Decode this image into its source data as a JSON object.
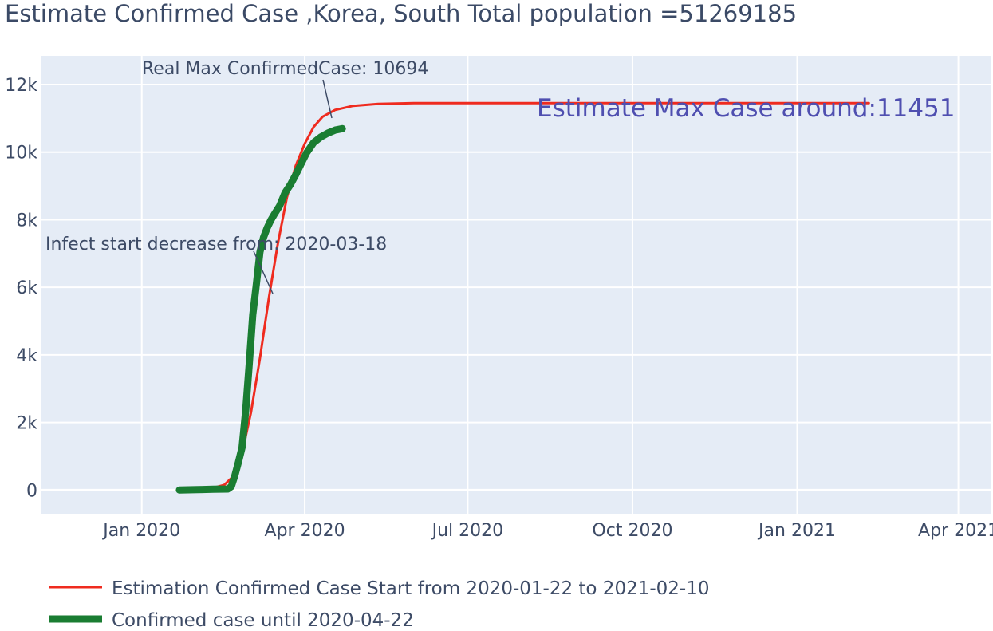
{
  "chart_data": {
    "type": "line",
    "title": "Estimate Confirmed Case ,Korea, South Total population =51269185",
    "xlabel": "",
    "ylabel": "",
    "x_type": "date",
    "xlim": [
      "2019-11-06",
      "2021-04-19"
    ],
    "ylim": [
      -700,
      12850
    ],
    "x_ticks": [
      {
        "date": "2020-01-01",
        "label": "Jan 2020"
      },
      {
        "date": "2020-04-01",
        "label": "Apr 2020"
      },
      {
        "date": "2020-07-01",
        "label": "Jul 2020"
      },
      {
        "date": "2020-10-01",
        "label": "Oct 2020"
      },
      {
        "date": "2021-01-01",
        "label": "Jan 2021"
      },
      {
        "date": "2021-04-01",
        "label": "Apr 2021"
      }
    ],
    "y_ticks": [
      {
        "value": 0,
        "label": "0"
      },
      {
        "value": 2000,
        "label": "2k"
      },
      {
        "value": 4000,
        "label": "4k"
      },
      {
        "value": 6000,
        "label": "6k"
      },
      {
        "value": 8000,
        "label": "8k"
      },
      {
        "value": 10000,
        "label": "10k"
      },
      {
        "value": 12000,
        "label": "12k"
      }
    ],
    "grid": true,
    "legend_position": "bottom-left",
    "series": [
      {
        "name": "Estimation Confirmed Case Start from 2020-01-22 to 2021-02-10",
        "color": "#ef2b1f",
        "line_width": 3,
        "points": [
          [
            "2020-01-22",
            5
          ],
          [
            "2020-02-01",
            20
          ],
          [
            "2020-02-10",
            70
          ],
          [
            "2020-02-16",
            150
          ],
          [
            "2020-02-21",
            400
          ],
          [
            "2020-02-26",
            1100
          ],
          [
            "2020-03-02",
            2300
          ],
          [
            "2020-03-07",
            3900
          ],
          [
            "2020-03-12",
            5700
          ],
          [
            "2020-03-17",
            7300
          ],
          [
            "2020-03-22",
            8650
          ],
          [
            "2020-03-27",
            9600
          ],
          [
            "2020-04-01",
            10250
          ],
          [
            "2020-04-06",
            10750
          ],
          [
            "2020-04-11",
            11050
          ],
          [
            "2020-04-18",
            11250
          ],
          [
            "2020-04-28",
            11370
          ],
          [
            "2020-05-12",
            11430
          ],
          [
            "2020-06-01",
            11450
          ],
          [
            "2020-09-01",
            11451
          ],
          [
            "2021-02-10",
            11451
          ]
        ]
      },
      {
        "name": "Confirmed case until 2020-04-22",
        "color": "#1a7d32",
        "line_width": 9,
        "points": [
          [
            "2020-01-22",
            1
          ],
          [
            "2020-02-01",
            12
          ],
          [
            "2020-02-10",
            27
          ],
          [
            "2020-02-18",
            31
          ],
          [
            "2020-02-20",
            104
          ],
          [
            "2020-02-22",
            433
          ],
          [
            "2020-02-24",
            833
          ],
          [
            "2020-02-26",
            1261
          ],
          [
            "2020-02-28",
            2337
          ],
          [
            "2020-03-01",
            3736
          ],
          [
            "2020-03-03",
            5186
          ],
          [
            "2020-03-05",
            6088
          ],
          [
            "2020-03-07",
            7041
          ],
          [
            "2020-03-09",
            7478
          ],
          [
            "2020-03-11",
            7755
          ],
          [
            "2020-03-13",
            7979
          ],
          [
            "2020-03-15",
            8162
          ],
          [
            "2020-03-18",
            8413
          ],
          [
            "2020-03-21",
            8799
          ],
          [
            "2020-03-24",
            9037
          ],
          [
            "2020-03-27",
            9332
          ],
          [
            "2020-03-30",
            9661
          ],
          [
            "2020-04-02",
            9976
          ],
          [
            "2020-04-06",
            10284
          ],
          [
            "2020-04-10",
            10450
          ],
          [
            "2020-04-14",
            10564
          ],
          [
            "2020-04-18",
            10653
          ],
          [
            "2020-04-22",
            10694
          ]
        ]
      }
    ],
    "annotations": [
      {
        "text": "Real Max ConfirmedCase: 10694",
        "x": "2020-04-22",
        "y": 10694,
        "style": "arrow"
      },
      {
        "text": "Infect start decrease from: 2020-03-18",
        "x": "2020-03-18",
        "y": 5700,
        "style": "arrow"
      },
      {
        "text": "Estimate Max Case around:11451",
        "style": "large"
      }
    ]
  }
}
